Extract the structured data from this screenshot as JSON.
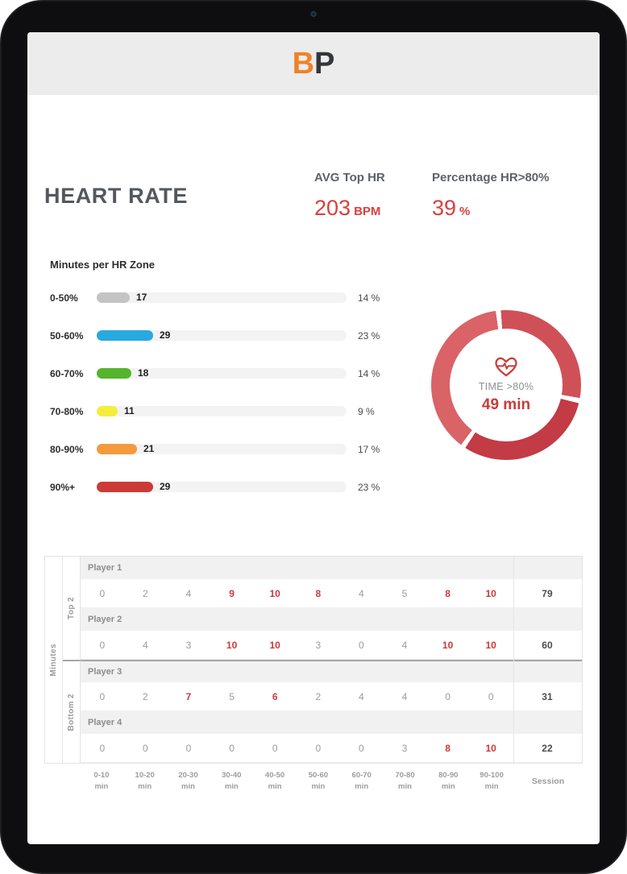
{
  "logo": {
    "b": "B",
    "p": "P"
  },
  "summary": {
    "title": "HEART RATE",
    "avg_label": "AVG Top HR",
    "avg_value": "203",
    "avg_unit": "BPM",
    "pct_label": "Percentage HR>80%",
    "pct_value": "39",
    "pct_unit": "%"
  },
  "zones": {
    "title": "Minutes per HR Zone",
    "items": [
      {
        "label": "0-50%",
        "minutes": 17,
        "pct": "14 %",
        "color": "#c4c4c4"
      },
      {
        "label": "50-60%",
        "minutes": 29,
        "pct": "23 %",
        "color": "#29a9e1"
      },
      {
        "label": "60-70%",
        "minutes": 18,
        "pct": "14 %",
        "color": "#55b42c"
      },
      {
        "label": "70-80%",
        "minutes": 11,
        "pct": "9 %",
        "color": "#f3ee3d"
      },
      {
        "label": "80-90%",
        "minutes": 21,
        "pct": "17 %",
        "color": "#f5993d"
      },
      {
        "label": "90%+",
        "minutes": 29,
        "pct": "23 %",
        "color": "#cc3a36"
      }
    ]
  },
  "donut": {
    "label": "TIME >80%",
    "value": "49 min",
    "segments": [
      {
        "from": 0,
        "to": 100,
        "color": "#d05058"
      },
      {
        "from": 104,
        "to": 213,
        "color": "#c23b45"
      },
      {
        "from": 217,
        "to": 352,
        "color": "#d96367"
      },
      {
        "from": 356,
        "to": 360,
        "color": "#d05058"
      }
    ]
  },
  "table": {
    "axis_label": "Minutes",
    "groups": [
      {
        "label": "Top 2",
        "players": [
          {
            "name": "Player 1",
            "values": [
              0,
              2,
              4,
              9,
              10,
              8,
              4,
              5,
              8,
              10
            ],
            "hot": [
              0,
              0,
              0,
              1,
              1,
              1,
              0,
              0,
              1,
              1
            ],
            "session": 79
          },
          {
            "name": "Player 2",
            "values": [
              0,
              4,
              3,
              10,
              10,
              3,
              0,
              4,
              10,
              10
            ],
            "hot": [
              0,
              0,
              0,
              1,
              1,
              0,
              0,
              0,
              1,
              1
            ],
            "session": 60
          }
        ]
      },
      {
        "label": "Bottom 2",
        "players": [
          {
            "name": "Player 3",
            "values": [
              0,
              2,
              7,
              5,
              6,
              2,
              4,
              4,
              0,
              0
            ],
            "hot": [
              0,
              0,
              1,
              0,
              1,
              0,
              0,
              0,
              0,
              0
            ],
            "session": 31
          },
          {
            "name": "Player 4",
            "values": [
              0,
              0,
              0,
              0,
              0,
              0,
              0,
              3,
              8,
              10
            ],
            "hot": [
              0,
              0,
              0,
              0,
              0,
              0,
              0,
              0,
              1,
              1
            ],
            "session": 22
          }
        ]
      }
    ],
    "time_labels": [
      "0-10",
      "10-20",
      "20-30",
      "30-40",
      "40-50",
      "50-60",
      "60-70",
      "70-80",
      "80-90",
      "90-100"
    ],
    "time_unit": "min",
    "session_label": "Session"
  },
  "chart_data": [
    {
      "type": "bar",
      "orientation": "horizontal",
      "title": "Minutes per HR Zone",
      "categories": [
        "0-50%",
        "50-60%",
        "60-70%",
        "70-80%",
        "80-90%",
        "90%+"
      ],
      "values": [
        17,
        29,
        18,
        11,
        21,
        29
      ],
      "percent_labels": [
        "14 %",
        "23 %",
        "14 %",
        "9 %",
        "17 %",
        "23 %"
      ],
      "colors": [
        "#c4c4c4",
        "#29a9e1",
        "#55b42c",
        "#f3ee3d",
        "#f5993d",
        "#cc3a36"
      ],
      "xlim": [
        0,
        30
      ],
      "grid": false,
      "legend": "none"
    },
    {
      "type": "pie",
      "title": "TIME >80%",
      "center_label": "49 min",
      "values": [
        49
      ],
      "note": "red donut ring with heart-pulse icon; total time above 80% HR"
    },
    {
      "type": "table",
      "title": "Minutes per 10-minute interval per player",
      "columns": [
        "0-10 min",
        "10-20 min",
        "20-30 min",
        "30-40 min",
        "40-50 min",
        "50-60 min",
        "60-70 min",
        "70-80 min",
        "80-90 min",
        "90-100 min",
        "Session"
      ],
      "rows": [
        {
          "name": "Player 1",
          "group": "Top 2",
          "values": [
            0,
            2,
            4,
            9,
            10,
            8,
            4,
            5,
            8,
            10,
            79
          ]
        },
        {
          "name": "Player 2",
          "group": "Top 2",
          "values": [
            0,
            4,
            3,
            10,
            10,
            3,
            0,
            4,
            10,
            10,
            60
          ]
        },
        {
          "name": "Player 3",
          "group": "Bottom 2",
          "values": [
            0,
            2,
            7,
            5,
            6,
            2,
            4,
            4,
            0,
            0,
            31
          ]
        },
        {
          "name": "Player 4",
          "group": "Bottom 2",
          "values": [
            0,
            0,
            0,
            0,
            0,
            0,
            0,
            3,
            8,
            10,
            22
          ]
        }
      ]
    }
  ],
  "colors": {
    "accent_red": "#cc3a36",
    "accent_orange": "#f08228"
  }
}
